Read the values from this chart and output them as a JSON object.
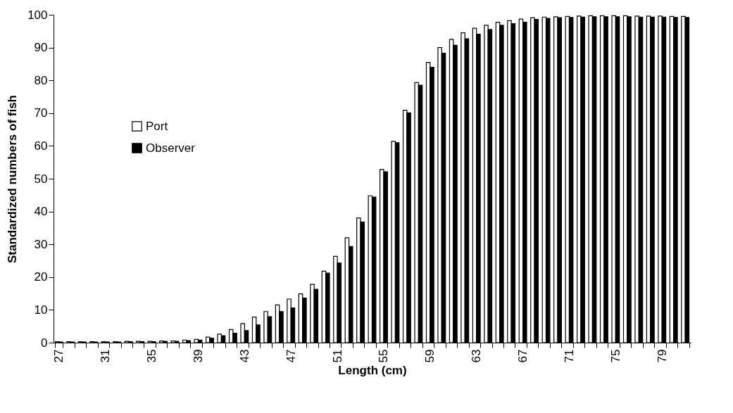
{
  "chart_data": {
    "type": "bar",
    "xlabel": "Length (cm)",
    "ylabel": "Standardized numbers of fish",
    "categories": [
      "27",
      null,
      null,
      null,
      "31",
      null,
      null,
      null,
      "35",
      null,
      null,
      null,
      "39",
      null,
      null,
      null,
      "43",
      null,
      null,
      null,
      "47",
      null,
      null,
      null,
      "51",
      null,
      null,
      null,
      "55",
      null,
      null,
      null,
      "59",
      null,
      null,
      null,
      "63",
      null,
      null,
      null,
      "67",
      null,
      null,
      null,
      "71",
      null,
      null,
      null,
      "75",
      null,
      null,
      null,
      "79",
      null,
      null
    ],
    "series": [
      {
        "name": "Port",
        "color": "#ffffff",
        "values": [
          0.3,
          0.3,
          0.3,
          0.3,
          0.3,
          0.3,
          0.4,
          0.4,
          0.4,
          0.5,
          0.5,
          0.8,
          1.0,
          1.7,
          2.6,
          4.0,
          5.8,
          7.8,
          9.5,
          11.5,
          13.3,
          14.9,
          17.8,
          21.8,
          26.3,
          32.0,
          38.0,
          44.8,
          52.8,
          61.4,
          70.9,
          79.3,
          85.5,
          90.0,
          92.5,
          94.5,
          95.9,
          96.8,
          97.7,
          98.2,
          98.7,
          99.1,
          99.3,
          99.4,
          99.5,
          99.6,
          99.7,
          99.7,
          99.7,
          99.7,
          99.6,
          99.6,
          99.6,
          99.5,
          99.5
        ]
      },
      {
        "name": "Observer",
        "color": "#000000",
        "values": [
          0.2,
          0.2,
          0.2,
          0.2,
          0.2,
          0.2,
          0.3,
          0.3,
          0.3,
          0.4,
          0.4,
          0.6,
          0.8,
          1.4,
          2.1,
          2.9,
          3.7,
          5.4,
          7.9,
          9.5,
          10.6,
          13.6,
          16.3,
          21.2,
          24.3,
          29.3,
          36.8,
          44.4,
          52.1,
          61.0,
          70.1,
          78.5,
          84.0,
          88.3,
          90.7,
          92.7,
          94.1,
          95.5,
          96.8,
          97.3,
          97.7,
          98.6,
          98.9,
          99.1,
          99.2,
          99.3,
          99.4,
          99.4,
          99.4,
          99.4,
          99.3,
          99.3,
          99.3,
          99.2,
          99.2
        ]
      }
    ],
    "ylim": [
      0,
      100
    ],
    "yticks": [
      0,
      10,
      20,
      30,
      40,
      50,
      60,
      70,
      80,
      90,
      100
    ],
    "grid": false,
    "legend": "left"
  }
}
